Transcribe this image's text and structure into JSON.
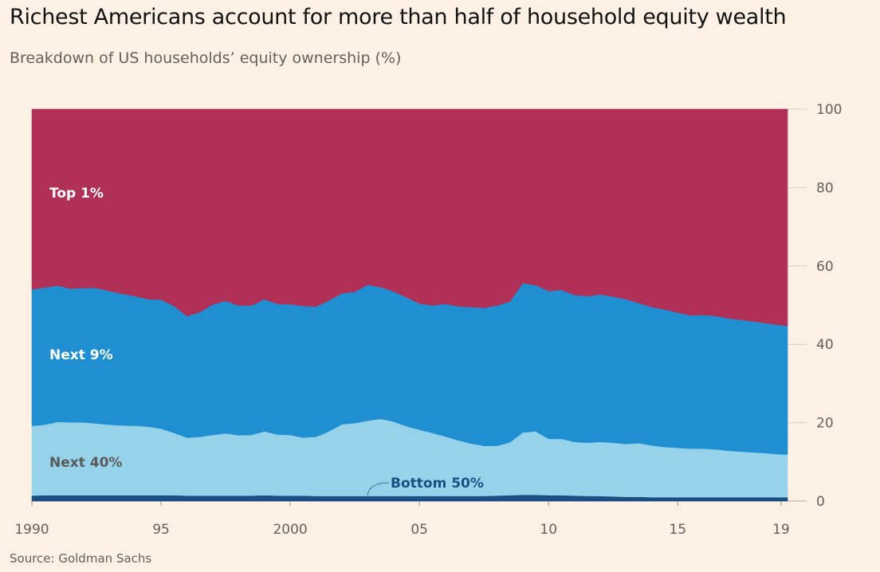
{
  "header": {
    "title": "Richest Americans account for more than half of household equity wealth",
    "subtitle": "Breakdown of US households’ equity ownership (%)"
  },
  "footer": {
    "source": "Source: Goldman Sachs"
  },
  "colors": {
    "background": "#fdf1e5",
    "top1": "#b03058",
    "next9": "#1f8fd1",
    "next40": "#96d3ea",
    "bottom50": "#1b4f83",
    "grid": "#d9cbbf",
    "axis_text": "#66605c",
    "band_label_light": "#ffffff",
    "band_label_dark": "#5a5a5a",
    "bottom_label": "#1b4f83"
  },
  "chart_data": {
    "type": "area",
    "stacked": true,
    "title": "Richest Americans account for more than half of household equity wealth",
    "subtitle": "Breakdown of US households’ equity ownership (%)",
    "xlabel": "",
    "ylabel": "",
    "xlim": [
      1990,
      2019.25
    ],
    "ylim": [
      0,
      100
    ],
    "y_axis_side": "right",
    "y_ticks": [
      0,
      20,
      40,
      60,
      80,
      100
    ],
    "x_ticks": [
      1990,
      1995,
      2000,
      2005,
      2010,
      2015,
      2019
    ],
    "x_tick_labels": [
      "1990",
      "95",
      "2000",
      "05",
      "10",
      "15",
      "19"
    ],
    "grid": "horizontal",
    "x": [
      1990,
      1990.5,
      1991,
      1991.5,
      1992,
      1992.5,
      1993,
      1993.5,
      1994,
      1994.5,
      1995,
      1995.5,
      1996,
      1996.5,
      1997,
      1997.5,
      1998,
      1998.5,
      1999,
      1999.5,
      2000,
      2000.5,
      2001,
      2001.5,
      2002,
      2002.5,
      2003,
      2003.5,
      2004,
      2004.5,
      2005,
      2005.5,
      2006,
      2006.5,
      2007,
      2007.5,
      2008,
      2008.5,
      2009,
      2009.5,
      2010,
      2010.5,
      2011,
      2011.5,
      2012,
      2012.5,
      2013,
      2013.5,
      2014,
      2014.5,
      2015,
      2015.5,
      2016,
      2016.5,
      2017,
      2017.5,
      2018,
      2018.5,
      2019,
      2019.25
    ],
    "series": [
      {
        "name": "Bottom 50%",
        "color": "#1b4f83",
        "values": [
          1.4,
          1.5,
          1.5,
          1.5,
          1.5,
          1.5,
          1.5,
          1.5,
          1.5,
          1.5,
          1.5,
          1.5,
          1.4,
          1.4,
          1.4,
          1.4,
          1.4,
          1.4,
          1.5,
          1.4,
          1.4,
          1.4,
          1.3,
          1.3,
          1.3,
          1.3,
          1.3,
          1.3,
          1.3,
          1.3,
          1.3,
          1.3,
          1.3,
          1.3,
          1.3,
          1.3,
          1.4,
          1.5,
          1.6,
          1.6,
          1.5,
          1.5,
          1.4,
          1.3,
          1.3,
          1.2,
          1.1,
          1.1,
          1.0,
          1.0,
          1.0,
          1.0,
          1.0,
          1.0,
          1.0,
          1.0,
          1.0,
          1.0,
          1.0,
          1.0
        ]
      },
      {
        "name": "Next 40%",
        "color": "#96d3ea",
        "values": [
          17.8,
          18.0,
          18.7,
          18.6,
          18.6,
          18.3,
          18.0,
          17.8,
          17.7,
          17.5,
          17.0,
          15.9,
          14.8,
          15.0,
          15.5,
          15.9,
          15.4,
          15.5,
          16.3,
          15.6,
          15.5,
          14.8,
          15.1,
          16.5,
          18.3,
          18.6,
          19.2,
          19.7,
          19.0,
          17.8,
          16.9,
          16.1,
          15.2,
          14.2,
          13.4,
          12.8,
          12.7,
          13.5,
          15.9,
          16.2,
          14.4,
          14.4,
          13.7,
          13.6,
          13.8,
          13.7,
          13.5,
          13.7,
          13.2,
          12.8,
          12.6,
          12.4,
          12.4,
          12.2,
          11.8,
          11.6,
          11.4,
          11.2,
          10.9,
          10.9
        ]
      },
      {
        "name": "Next 9%",
        "color": "#1f8fd1",
        "values": [
          34.8,
          35.0,
          34.8,
          34.1,
          34.3,
          34.6,
          34.1,
          33.6,
          33.1,
          32.5,
          32.9,
          32.4,
          31.0,
          31.8,
          33.3,
          33.8,
          33.1,
          33.0,
          33.7,
          33.3,
          33.3,
          33.6,
          33.2,
          33.4,
          33.4,
          33.5,
          34.7,
          33.6,
          33.2,
          32.9,
          32.2,
          32.5,
          33.8,
          34.2,
          34.8,
          35.2,
          35.8,
          35.9,
          38.1,
          37.3,
          37.7,
          38.0,
          37.5,
          37.4,
          37.6,
          37.3,
          36.9,
          35.7,
          35.3,
          35.1,
          34.5,
          34.0,
          34.1,
          34.0,
          33.8,
          33.6,
          33.4,
          33.1,
          33.0,
          32.8
        ]
      },
      {
        "name": "Top 1%",
        "color": "#b03058",
        "values": [
          46.0,
          45.5,
          45.0,
          45.8,
          45.6,
          45.6,
          46.4,
          47.1,
          47.7,
          48.5,
          48.6,
          50.2,
          52.8,
          51.8,
          49.8,
          48.9,
          50.1,
          50.1,
          48.5,
          49.7,
          49.8,
          50.2,
          50.4,
          48.8,
          47.0,
          46.6,
          44.8,
          45.4,
          46.5,
          48.0,
          49.6,
          50.1,
          49.7,
          50.3,
          50.5,
          50.7,
          50.1,
          49.1,
          44.4,
          44.9,
          46.4,
          46.1,
          47.4,
          47.7,
          47.3,
          47.8,
          48.5,
          49.5,
          50.5,
          51.1,
          51.9,
          52.6,
          52.5,
          52.8,
          53.4,
          53.8,
          54.2,
          54.7,
          55.1,
          55.3
        ]
      }
    ],
    "annotations": [
      {
        "text": "Top 1%",
        "series": "Top 1%"
      },
      {
        "text": "Next 9%",
        "series": "Next 9%"
      },
      {
        "text": "Next 40%",
        "series": "Next 40%"
      },
      {
        "text": "Bottom 50%",
        "series": "Bottom 50%"
      }
    ]
  }
}
